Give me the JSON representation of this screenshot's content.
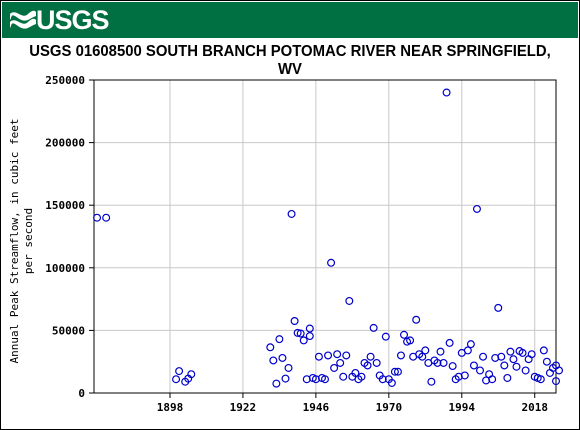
{
  "header": {
    "agency": "USGS",
    "colors": {
      "banner": "#006f41",
      "marker": "#0000cc",
      "grid": "#c8c8c8"
    }
  },
  "chart_data": {
    "type": "scatter",
    "title": "USGS 01608500 SOUTH BRANCH POTOMAC RIVER NEAR SPRINGFIELD, WV",
    "xlabel": "",
    "ylabel": [
      "Annual Peak Streamflow, in cubic feet",
      "per second"
    ],
    "xlim": [
      1873,
      2025
    ],
    "ylim": [
      0,
      250000
    ],
    "xticks": [
      1898,
      1922,
      1946,
      1970,
      1994,
      2018
    ],
    "yticks": [
      0,
      50000,
      100000,
      150000,
      200000,
      250000
    ],
    "grid": true,
    "series": [
      {
        "marker": "open-circle",
        "points": [
          [
            1874,
            140000
          ],
          [
            1877,
            140000
          ],
          [
            1900,
            11000
          ],
          [
            1901,
            17500
          ],
          [
            1903,
            9000
          ],
          [
            1904,
            11500
          ],
          [
            1905,
            15000
          ],
          [
            1931,
            36500
          ],
          [
            1932,
            26000
          ],
          [
            1933,
            7500
          ],
          [
            1934,
            43000
          ],
          [
            1935,
            28000
          ],
          [
            1936,
            11500
          ],
          [
            1937,
            20000
          ],
          [
            1938,
            143000
          ],
          [
            1939,
            57500
          ],
          [
            1940,
            48000
          ],
          [
            1941,
            47500
          ],
          [
            1942,
            42000
          ],
          [
            1943,
            11000
          ],
          [
            1944,
            51500
          ],
          [
            1944,
            45500
          ],
          [
            1945,
            12000
          ],
          [
            1946,
            11000
          ],
          [
            1947,
            29000
          ],
          [
            1948,
            12000
          ],
          [
            1949,
            11000
          ],
          [
            1950,
            30000
          ],
          [
            1951,
            104000
          ],
          [
            1952,
            20000
          ],
          [
            1953,
            31000
          ],
          [
            1954,
            24000
          ],
          [
            1955,
            13000
          ],
          [
            1956,
            30000
          ],
          [
            1957,
            73500
          ],
          [
            1958,
            13000
          ],
          [
            1959,
            16000
          ],
          [
            1960,
            11000
          ],
          [
            1961,
            13000
          ],
          [
            1962,
            24000
          ],
          [
            1963,
            22000
          ],
          [
            1964,
            29000
          ],
          [
            1965,
            52000
          ],
          [
            1966,
            24000
          ],
          [
            1967,
            14000
          ],
          [
            1968,
            11000
          ],
          [
            1969,
            45000
          ],
          [
            1970,
            11000
          ],
          [
            1971,
            8000
          ],
          [
            1972,
            17000
          ],
          [
            1973,
            17000
          ],
          [
            1974,
            30000
          ],
          [
            1975,
            46500
          ],
          [
            1976,
            41000
          ],
          [
            1977,
            42000
          ],
          [
            1978,
            29000
          ],
          [
            1979,
            58500
          ],
          [
            1980,
            31000
          ],
          [
            1981,
            29000
          ],
          [
            1982,
            34000
          ],
          [
            1983,
            24000
          ],
          [
            1984,
            9000
          ],
          [
            1985,
            26000
          ],
          [
            1986,
            24000
          ],
          [
            1987,
            33000
          ],
          [
            1988,
            24000
          ],
          [
            1989,
            240000
          ],
          [
            1990,
            40000
          ],
          [
            1991,
            21500
          ],
          [
            1992,
            11000
          ],
          [
            1993,
            13000
          ],
          [
            1994,
            32000
          ],
          [
            1995,
            14000
          ],
          [
            1996,
            34000
          ],
          [
            1997,
            39000
          ],
          [
            1998,
            22000
          ],
          [
            1999,
            147000
          ],
          [
            2000,
            18000
          ],
          [
            2001,
            29000
          ],
          [
            2002,
            10000
          ],
          [
            2003,
            15000
          ],
          [
            2004,
            11000
          ],
          [
            2005,
            28000
          ],
          [
            2006,
            68000
          ],
          [
            2007,
            29000
          ],
          [
            2008,
            22000
          ],
          [
            2009,
            12000
          ],
          [
            2010,
            33000
          ],
          [
            2011,
            27000
          ],
          [
            2012,
            21000
          ],
          [
            2013,
            33500
          ],
          [
            2014,
            32000
          ],
          [
            2015,
            18000
          ],
          [
            2016,
            27000
          ],
          [
            2017,
            31000
          ],
          [
            2018,
            13000
          ],
          [
            2019,
            12000
          ],
          [
            2020,
            11000
          ],
          [
            2021,
            34000
          ],
          [
            2022,
            25000
          ],
          [
            2023,
            16000
          ],
          [
            2024,
            20000
          ],
          [
            2025,
            22000
          ],
          [
            2025,
            9500
          ],
          [
            2026,
            18000
          ]
        ]
      }
    ]
  }
}
